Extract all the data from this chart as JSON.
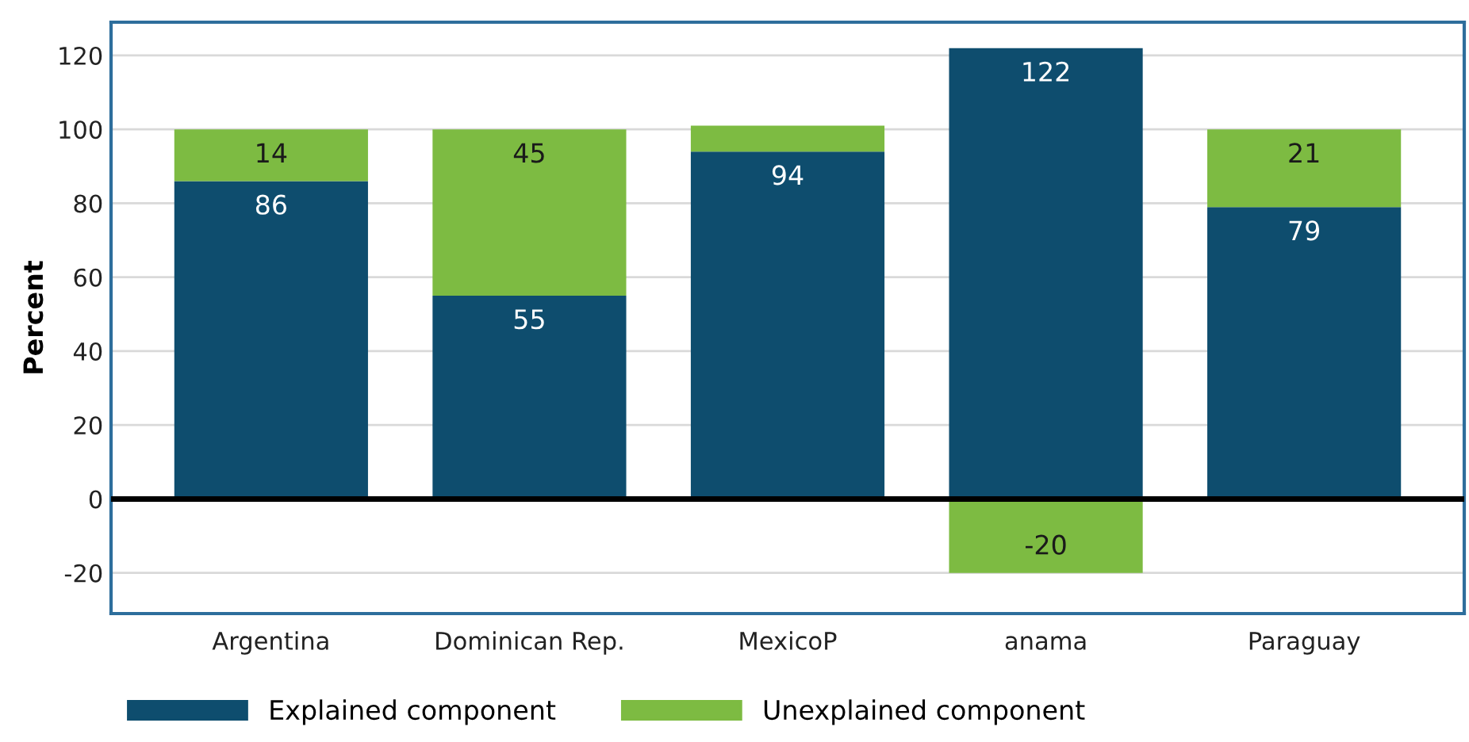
{
  "chart_data": {
    "type": "bar",
    "stacked": true,
    "ylabel": "Percent",
    "categories": [
      "Argentina",
      "Dominican Rep.",
      "MexicoP",
      "anama",
      "Paraguay"
    ],
    "series": [
      {
        "name": "Explained component",
        "color": "#0e4d6e",
        "values": [
          86,
          55,
          94,
          122,
          79
        ],
        "value_labels": [
          "86",
          "55",
          "94",
          "122",
          "79"
        ]
      },
      {
        "name": "Unexplained component",
        "color": "#7dbb42",
        "values": [
          14,
          45,
          7,
          -20,
          21
        ],
        "value_labels": [
          "14",
          "45",
          null,
          "-20",
          "21"
        ]
      }
    ],
    "ylim": [
      -31,
      129
    ],
    "yticks": [
      -20,
      0,
      20,
      40,
      60,
      80,
      100,
      120
    ],
    "ref_lines": [
      {
        "axis": "y",
        "value": 0,
        "color": "#000000"
      }
    ],
    "grid": "y",
    "legend": "bottom"
  }
}
